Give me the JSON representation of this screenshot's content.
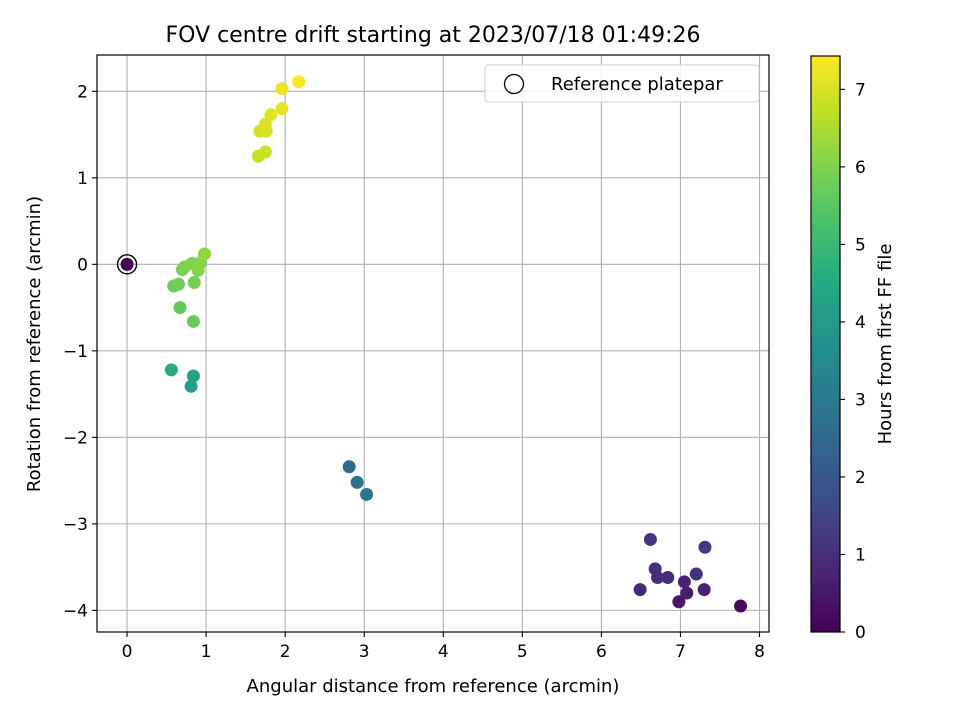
{
  "chart_data": {
    "type": "scatter",
    "title": "FOV centre drift starting at 2023/07/18 01:49:26",
    "xlabel": "Angular distance from reference (arcmin)",
    "ylabel": "Rotation from reference (arcmin)",
    "xlim": [
      -0.38,
      8.12
    ],
    "ylim": [
      -4.25,
      2.42
    ],
    "xticks": [
      0,
      1,
      2,
      3,
      4,
      5,
      6,
      7,
      8
    ],
    "yticks": [
      -4,
      -3,
      -2,
      -1,
      0,
      1,
      2
    ],
    "grid": true,
    "legend": {
      "placement": "top-right",
      "entries": [
        "Reference platepar"
      ]
    },
    "colorbar": {
      "label": "Hours from first FF file",
      "range": [
        0,
        7.43
      ],
      "ticks": [
        0,
        1,
        2,
        3,
        4,
        5,
        6,
        7
      ],
      "colormap": "viridis"
    },
    "reference_point": {
      "x": 0,
      "y": 0
    },
    "points": [
      {
        "x": 0.0,
        "y": 0.0,
        "c": 0.0
      },
      {
        "x": 7.76,
        "y": -3.95,
        "c": 0.2
      },
      {
        "x": 6.98,
        "y": -3.9,
        "c": 0.45
      },
      {
        "x": 7.08,
        "y": -3.8,
        "c": 0.6
      },
      {
        "x": 7.05,
        "y": -3.67,
        "c": 0.7
      },
      {
        "x": 7.3,
        "y": -3.76,
        "c": 0.75
      },
      {
        "x": 6.49,
        "y": -3.76,
        "c": 0.85
      },
      {
        "x": 6.71,
        "y": -3.62,
        "c": 0.9
      },
      {
        "x": 6.84,
        "y": -3.62,
        "c": 0.95
      },
      {
        "x": 6.68,
        "y": -3.52,
        "c": 1.0
      },
      {
        "x": 7.2,
        "y": -3.58,
        "c": 1.05
      },
      {
        "x": 6.62,
        "y": -3.18,
        "c": 1.1
      },
      {
        "x": 7.31,
        "y": -3.27,
        "c": 1.2
      },
      {
        "x": 2.81,
        "y": -2.34,
        "c": 2.6
      },
      {
        "x": 2.91,
        "y": -2.52,
        "c": 2.75
      },
      {
        "x": 3.03,
        "y": -2.66,
        "c": 2.9
      },
      {
        "x": 0.81,
        "y": -1.41,
        "c": 4.2
      },
      {
        "x": 0.84,
        "y": -1.29,
        "c": 4.3
      },
      {
        "x": 0.56,
        "y": -1.22,
        "c": 4.6
      },
      {
        "x": 0.67,
        "y": -0.5,
        "c": 5.6
      },
      {
        "x": 0.84,
        "y": -0.66,
        "c": 5.7
      },
      {
        "x": 0.59,
        "y": -0.25,
        "c": 5.75
      },
      {
        "x": 0.65,
        "y": -0.23,
        "c": 5.8
      },
      {
        "x": 0.85,
        "y": -0.21,
        "c": 5.85
      },
      {
        "x": 0.7,
        "y": -0.06,
        "c": 5.9
      },
      {
        "x": 0.73,
        "y": -0.03,
        "c": 5.95
      },
      {
        "x": 0.82,
        "y": 0.01,
        "c": 6.0
      },
      {
        "x": 0.9,
        "y": -0.07,
        "c": 6.05
      },
      {
        "x": 0.93,
        "y": 0.02,
        "c": 6.1
      },
      {
        "x": 0.98,
        "y": 0.12,
        "c": 6.2
      },
      {
        "x": 1.66,
        "y": 1.25,
        "c": 6.8
      },
      {
        "x": 1.75,
        "y": 1.3,
        "c": 6.85
      },
      {
        "x": 1.68,
        "y": 1.54,
        "c": 6.95
      },
      {
        "x": 1.76,
        "y": 1.54,
        "c": 7.0
      },
      {
        "x": 1.75,
        "y": 1.62,
        "c": 7.05
      },
      {
        "x": 1.82,
        "y": 1.73,
        "c": 7.1
      },
      {
        "x": 1.96,
        "y": 1.8,
        "c": 7.15
      },
      {
        "x": 1.96,
        "y": 2.03,
        "c": 7.25
      },
      {
        "x": 2.17,
        "y": 2.11,
        "c": 7.35
      }
    ]
  }
}
